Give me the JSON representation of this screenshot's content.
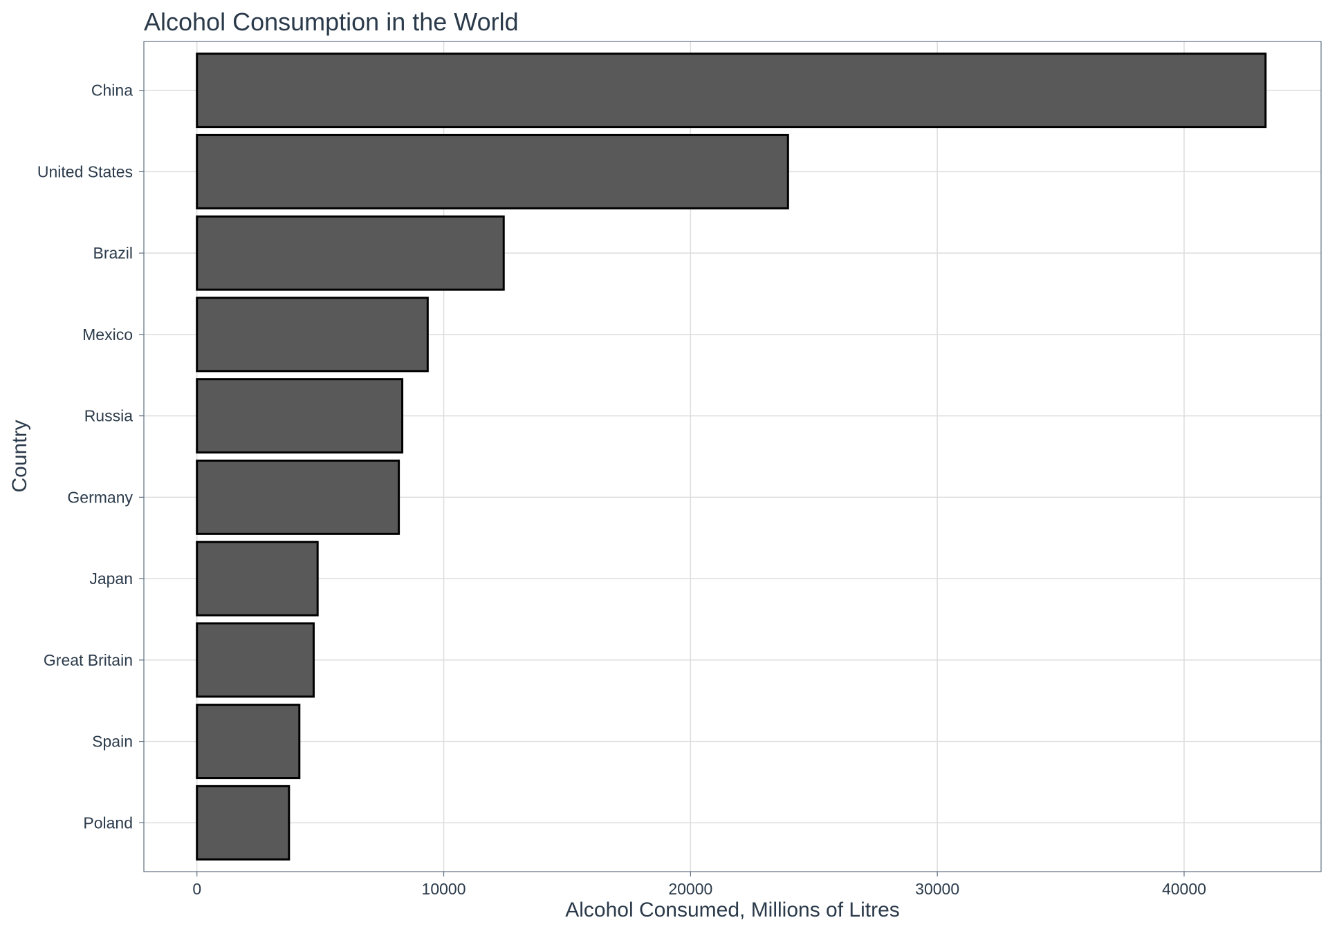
{
  "chart_data": {
    "type": "bar",
    "orientation": "horizontal",
    "title": "Alcohol Consumption in the World",
    "xlabel": "Alcohol Consumed, Millions of Litres",
    "ylabel": "Country",
    "categories": [
      "China",
      "United States",
      "Brazil",
      "Mexico",
      "Russia",
      "Germany",
      "Japan",
      "Great Britain",
      "Spain",
      "Poland"
    ],
    "values": [
      43300,
      23950,
      12430,
      9350,
      8320,
      8180,
      4890,
      4730,
      4150,
      3730
    ],
    "xlim": [
      -2150,
      45550
    ],
    "xticks": [
      0,
      10000,
      20000,
      30000,
      40000
    ],
    "xtick_labels": [
      "0",
      "10000",
      "20000",
      "30000",
      "40000"
    ],
    "grid": true,
    "legend": "none",
    "colors": {
      "bar_fill": "#595959",
      "bar_stroke": "#000000",
      "grid": "#dddddd",
      "text": "#2b3a4a",
      "panel_border": "#5f6f80"
    }
  }
}
